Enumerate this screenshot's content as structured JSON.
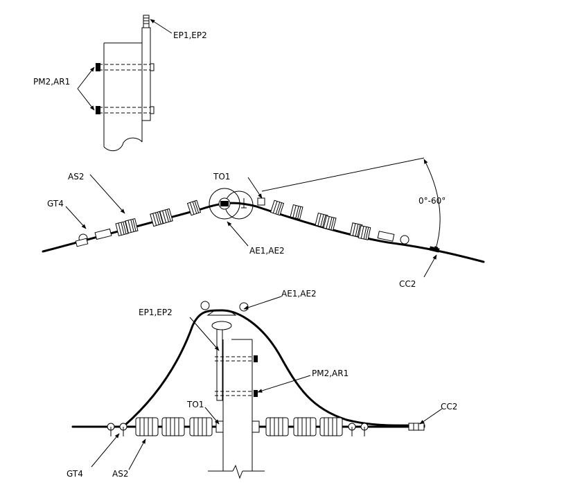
{
  "labels": {
    "top": {
      "ep": "EP1,EP2",
      "pm": "PM2,AR1"
    },
    "middle": {
      "as": "AS2",
      "gt": "GT4",
      "to": "TO1",
      "ae": "AE1,AE2",
      "angle": "0°-60°",
      "cc": "CC2"
    },
    "bottom": {
      "ae": "AE1,AE2",
      "ep": "EP1,EP2",
      "pm": "PM2,AR1",
      "to": "TO1",
      "cc": "CC2",
      "gt": "GT4",
      "as": "AS2"
    }
  }
}
